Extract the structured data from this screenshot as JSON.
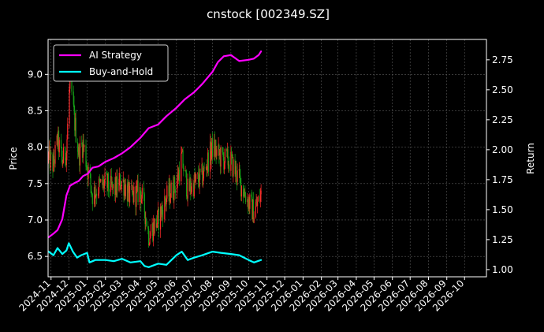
{
  "chart_data": {
    "type": "line",
    "title": "cnstock [002349.SZ]",
    "ylabel": "Price",
    "ylabel_right": "Return",
    "xlabel": "",
    "ylim": [
      6.22,
      9.48
    ],
    "ylim_right": [
      0.94,
      2.92
    ],
    "x_range": [
      "2024-10-27",
      "2026-11-07"
    ],
    "grid": true,
    "background": "#000000",
    "legend_position": "top-left",
    "y_ticks": [
      "6.5",
      "7.0",
      "7.5",
      "8.0",
      "8.5",
      "9.0"
    ],
    "y_ticks_right": [
      "1.00",
      "1.25",
      "1.50",
      "1.75",
      "2.00",
      "2.25",
      "2.50",
      "2.75"
    ],
    "x_ticks": [
      "2024-11",
      "2024-12",
      "2025-01",
      "2025-02",
      "2025-03",
      "2025-04",
      "2025-05",
      "2025-06",
      "2025-07",
      "2025-08",
      "2025-09",
      "2025-10",
      "2025-11",
      "2025-12",
      "2026-01",
      "2026-02",
      "2026-03",
      "2026-04",
      "2026-05",
      "2026-06",
      "2026-07",
      "2026-08",
      "2026-09",
      "2026-10"
    ],
    "x_tick_dates": [
      "2024-11-01",
      "2024-12-01",
      "2025-01-01",
      "2025-02-01",
      "2025-03-01",
      "2025-04-01",
      "2025-05-01",
      "2025-06-01",
      "2025-07-01",
      "2025-08-01",
      "2025-09-01",
      "2025-10-01",
      "2025-11-01",
      "2025-12-01",
      "2026-01-01",
      "2026-02-01",
      "2026-03-01",
      "2026-04-01",
      "2026-05-01",
      "2026-06-01",
      "2026-07-01",
      "2026-08-01",
      "2026-09-01",
      "2026-10-01"
    ],
    "series": [
      {
        "name": "AI Strategy",
        "axis": "right",
        "color": "#ff00ff",
        "x": [
          "2024-10-28",
          "2024-11-05",
          "2024-11-12",
          "2024-11-20",
          "2024-11-27",
          "2024-12-03",
          "2024-12-10",
          "2024-12-18",
          "2024-12-25",
          "2025-01-02",
          "2025-01-10",
          "2025-01-20",
          "2025-02-01",
          "2025-02-15",
          "2025-03-01",
          "2025-03-15",
          "2025-04-01",
          "2025-04-15",
          "2025-05-01",
          "2025-05-15",
          "2025-06-01",
          "2025-06-15",
          "2025-07-01",
          "2025-07-15",
          "2025-08-01",
          "2025-08-10",
          "2025-08-20",
          "2025-09-01",
          "2025-09-15",
          "2025-10-01",
          "2025-10-10",
          "2025-10-18",
          "2025-10-22"
        ],
        "values": [
          1.27,
          1.3,
          1.33,
          1.42,
          1.62,
          1.7,
          1.72,
          1.74,
          1.78,
          1.8,
          1.85,
          1.86,
          1.9,
          1.93,
          1.97,
          2.02,
          2.1,
          2.18,
          2.21,
          2.28,
          2.35,
          2.42,
          2.48,
          2.55,
          2.65,
          2.73,
          2.78,
          2.79,
          2.74,
          2.75,
          2.76,
          2.79,
          2.82
        ]
      },
      {
        "name": "Buy-and-Hold",
        "axis": "right",
        "color": "#00ffff",
        "x": [
          "2024-10-28",
          "2024-11-05",
          "2024-11-12",
          "2024-11-20",
          "2024-11-27",
          "2024-12-01",
          "2024-12-08",
          "2024-12-15",
          "2024-12-22",
          "2025-01-01",
          "2025-01-05",
          "2025-01-15",
          "2025-02-01",
          "2025-02-15",
          "2025-03-01",
          "2025-03-15",
          "2025-04-01",
          "2025-04-08",
          "2025-04-15",
          "2025-05-01",
          "2025-05-15",
          "2025-06-01",
          "2025-06-10",
          "2025-06-20",
          "2025-07-01",
          "2025-07-15",
          "2025-08-01",
          "2025-08-15",
          "2025-09-01",
          "2025-09-15",
          "2025-10-01",
          "2025-10-10",
          "2025-10-22"
        ],
        "values": [
          1.15,
          1.12,
          1.18,
          1.13,
          1.16,
          1.22,
          1.15,
          1.1,
          1.12,
          1.14,
          1.06,
          1.08,
          1.08,
          1.07,
          1.09,
          1.06,
          1.07,
          1.03,
          1.02,
          1.05,
          1.04,
          1.12,
          1.15,
          1.08,
          1.1,
          1.12,
          1.15,
          1.14,
          1.13,
          1.12,
          1.08,
          1.06,
          1.08
        ]
      },
      {
        "name": "price",
        "axis": "left",
        "type": "candlestick",
        "color_up": "#ff2a2a",
        "color_down": "#16a016",
        "x": [
          "2024-10-28",
          "2024-11-05",
          "2024-11-12",
          "2024-11-20",
          "2024-11-27",
          "2024-12-03",
          "2024-12-10",
          "2024-12-18",
          "2024-12-25",
          "2025-01-02",
          "2025-01-10",
          "2025-01-20",
          "2025-02-01",
          "2025-02-15",
          "2025-03-01",
          "2025-03-15",
          "2025-04-01",
          "2025-04-08",
          "2025-04-15",
          "2025-05-01",
          "2025-05-15",
          "2025-06-01",
          "2025-06-10",
          "2025-06-20",
          "2025-07-01",
          "2025-07-15",
          "2025-08-01",
          "2025-08-15",
          "2025-09-01",
          "2025-09-15",
          "2025-10-01",
          "2025-10-10",
          "2025-10-22"
        ],
        "values": [
          7.85,
          7.75,
          8.1,
          7.8,
          7.95,
          8.95,
          8.4,
          7.9,
          8.05,
          7.7,
          7.35,
          7.45,
          7.5,
          7.4,
          7.55,
          7.3,
          7.4,
          7.15,
          6.8,
          7.0,
          7.3,
          7.5,
          7.85,
          7.4,
          7.5,
          7.6,
          8.0,
          7.85,
          7.8,
          7.55,
          7.25,
          7.1,
          7.35
        ]
      }
    ]
  }
}
